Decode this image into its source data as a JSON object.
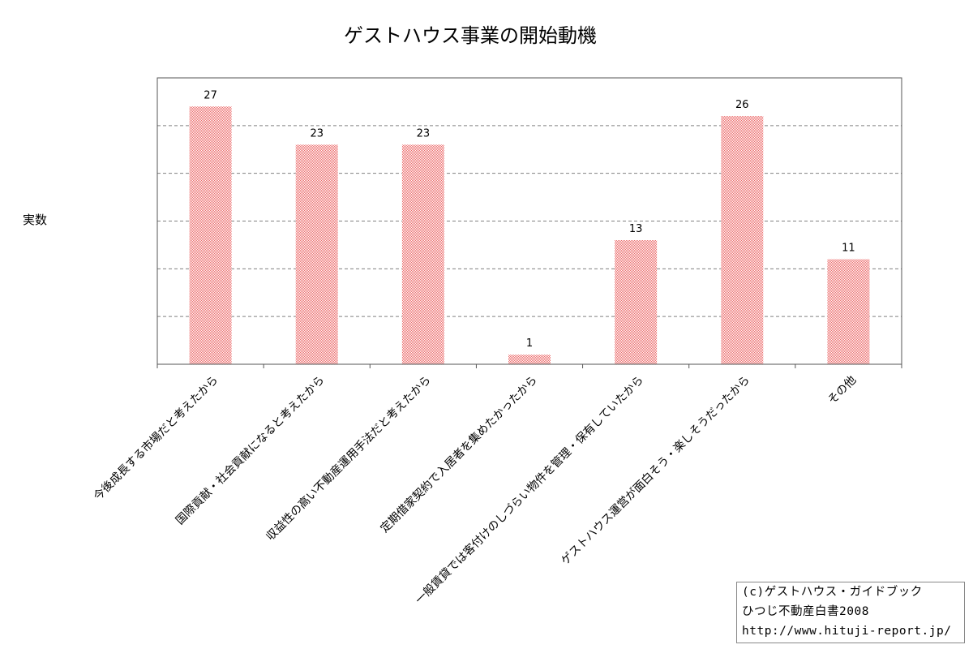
{
  "chart_data": {
    "type": "bar",
    "title": "ゲストハウス事業の開始動機",
    "ylabel": "実数",
    "xlabel": "",
    "categories": [
      "今後成長する市場だと考えたから",
      "国際貢献・社会貢献になると考えたから",
      "収益性の高い不動産運用手法だと考えたから",
      "定期借家契約で入居者を集めたかったから",
      "一般賃貸では客付けのしづらい物件を管理・保有していたから",
      "ゲストハウス運営が面白そう・楽しそうだったから",
      "その他"
    ],
    "values": [
      27,
      23,
      23,
      1,
      13,
      26,
      11
    ],
    "ylim": [
      0,
      30
    ],
    "grid": true,
    "bar_color": "#f07878",
    "gridline_color": "#808080",
    "tick_labels_y_shown": false
  },
  "credit": {
    "line1": "(c)ゲストハウス・ガイドブック",
    "line2": "ひつじ不動産白書2008",
    "line3": "http://www.hituji-report.jp/"
  }
}
